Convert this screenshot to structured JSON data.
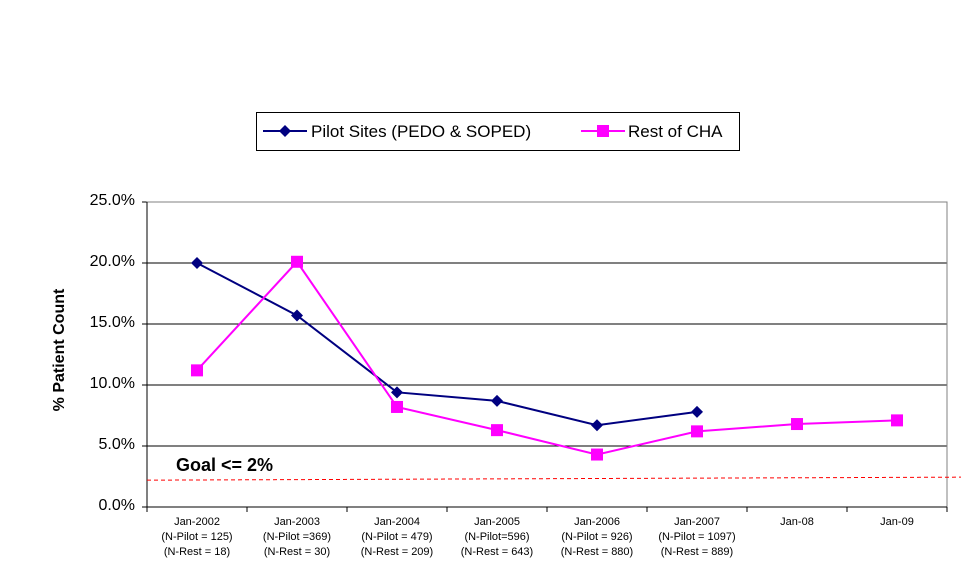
{
  "chart_data": {
    "type": "line",
    "title": "",
    "xlabel": "",
    "ylabel": "% Patient Count",
    "ylim": [
      0,
      25
    ],
    "yticks": [
      "0.0%",
      "5.0%",
      "10.0%",
      "15.0%",
      "20.0%",
      "25.0%"
    ],
    "grid": true,
    "legend_position": "top",
    "categories": [
      [
        "Jan-2002",
        "(N-Pilot = 125)",
        "(N-Rest = 18)"
      ],
      [
        "Jan-2003",
        "(N-Pilot =369)",
        "(N-Rest = 30)"
      ],
      [
        "Jan-2004",
        "(N-Pilot = 479)",
        "(N-Rest = 209)"
      ],
      [
        "Jan-2005",
        "(N-Pilot=596)",
        "(N-Rest = 643)"
      ],
      [
        "Jan-2006",
        "(N-Pilot = 926)",
        "(N-Rest = 880)"
      ],
      [
        "Jan-2007",
        "(N-Pilot = 1097)",
        "(N-Rest = 889)"
      ],
      [
        "Jan-08",
        "",
        ""
      ],
      [
        "Jan-09",
        "",
        ""
      ]
    ],
    "series": [
      {
        "name": "Pilot Sites (PEDO & SOPED)",
        "color": "#000080",
        "marker": "diamond",
        "values": [
          20.0,
          15.7,
          9.4,
          8.7,
          6.7,
          7.8,
          null,
          null
        ]
      },
      {
        "name": "Rest of CHA",
        "color": "#FF00FF",
        "marker": "square",
        "values": [
          11.2,
          20.1,
          8.2,
          6.3,
          4.3,
          6.2,
          6.8,
          7.1
        ]
      }
    ],
    "goal": {
      "label": "Goal <= 2%",
      "value": 2.2,
      "color": "#FF0000"
    }
  }
}
